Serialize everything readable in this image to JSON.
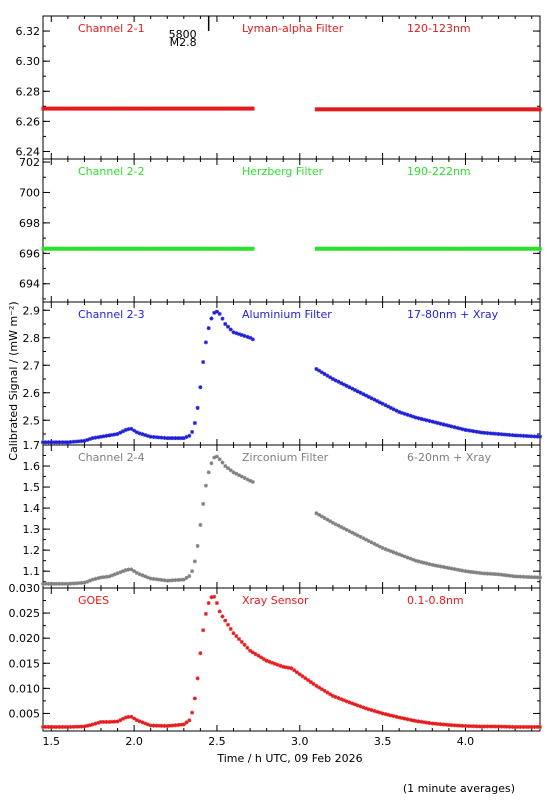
{
  "figure": {
    "xlabel": "Time / h UTC, 09 Feb 2026",
    "ylabel": "Calibrated Signal / (mW m⁻²)",
    "footnote": "(1 minute averages)",
    "flare_marker": {
      "x": 2.45,
      "line1": "5800",
      "line2": "M2.8"
    }
  },
  "chart_data": [
    {
      "type": "scatter",
      "channel": "Channel 2-1",
      "filter": "Lyman-alpha Filter",
      "band": "120-123nm",
      "color": "#e41a1c",
      "xlim": [
        1.45,
        4.45
      ],
      "ylim": [
        6.235,
        6.33
      ],
      "yticks": [
        6.24,
        6.26,
        6.28,
        6.3,
        6.32
      ],
      "ydecimals": 2,
      "gap": [
        2.73,
        3.09
      ],
      "series": [
        {
          "x": [
            1.45,
            2.0,
            2.5,
            2.73,
            3.09,
            3.6,
            4.1,
            4.45
          ],
          "y": [
            6.2685,
            6.2685,
            6.2685,
            6.2685,
            6.268,
            6.268,
            6.268,
            6.268
          ]
        }
      ]
    },
    {
      "type": "scatter",
      "channel": "Channel 2-2",
      "filter": "Herzberg Filter",
      "band": "190-222nm",
      "color": "#2ee02e",
      "xlim": [
        1.45,
        4.45
      ],
      "ylim": [
        692.8,
        702.2
      ],
      "yticks": [
        694,
        696,
        698,
        700,
        702
      ],
      "ydecimals": 0,
      "gap": [
        2.73,
        3.09
      ],
      "series": [
        {
          "x": [
            1.45,
            2.0,
            2.5,
            2.73,
            3.09,
            3.6,
            4.1,
            4.45
          ],
          "y": [
            696.3,
            696.3,
            696.3,
            696.3,
            696.3,
            696.3,
            696.3,
            696.3
          ]
        }
      ]
    },
    {
      "type": "scatter",
      "channel": "Channel 2-3",
      "filter": "Aluminium Filter",
      "band": "17-80nm + Xray",
      "color": "#1f1fd6",
      "xlim": [
        1.45,
        4.45
      ],
      "ylim": [
        2.41,
        2.93
      ],
      "yticks": [
        2.5,
        2.6,
        2.7,
        2.8,
        2.9
      ],
      "ydecimals": 1,
      "gap": [
        2.73,
        3.09
      ],
      "series": [
        {
          "x": [
            1.45,
            1.6,
            1.7,
            1.75,
            1.8,
            1.85,
            1.9,
            1.95,
            1.98,
            2.02,
            2.1,
            2.2,
            2.3,
            2.34,
            2.36,
            2.38,
            2.4,
            2.42,
            2.44,
            2.46,
            2.48,
            2.5,
            2.52,
            2.55,
            2.6,
            2.65,
            2.7,
            2.73,
            3.09,
            3.2,
            3.3,
            3.4,
            3.5,
            3.6,
            3.7,
            3.8,
            3.9,
            4.0,
            4.1,
            4.2,
            4.3,
            4.45
          ],
          "y": [
            2.42,
            2.42,
            2.425,
            2.435,
            2.44,
            2.445,
            2.45,
            2.465,
            2.47,
            2.455,
            2.44,
            2.435,
            2.435,
            2.445,
            2.47,
            2.53,
            2.62,
            2.73,
            2.81,
            2.86,
            2.89,
            2.895,
            2.885,
            2.85,
            2.82,
            2.81,
            2.8,
            2.79,
            2.69,
            2.65,
            2.62,
            2.59,
            2.56,
            2.53,
            2.51,
            2.495,
            2.48,
            2.465,
            2.455,
            2.45,
            2.445,
            2.44
          ]
        }
      ]
    },
    {
      "type": "scatter",
      "channel": "Channel 2-4",
      "filter": "Zirconium Filter",
      "band": "6-20nm + Xray",
      "color": "#7f7f7f",
      "xlim": [
        1.45,
        4.45
      ],
      "ylim": [
        1.02,
        1.7
      ],
      "yticks": [
        1.1,
        1.2,
        1.3,
        1.4,
        1.5,
        1.6,
        1.7
      ],
      "ydecimals": 1,
      "gap": [
        2.73,
        3.09
      ],
      "series": [
        {
          "x": [
            1.45,
            1.6,
            1.7,
            1.75,
            1.8,
            1.85,
            1.9,
            1.95,
            1.98,
            2.02,
            2.1,
            2.2,
            2.3,
            2.34,
            2.36,
            2.38,
            2.4,
            2.42,
            2.44,
            2.46,
            2.48,
            2.5,
            2.52,
            2.55,
            2.6,
            2.65,
            2.7,
            2.73,
            3.09,
            3.2,
            3.3,
            3.4,
            3.5,
            3.6,
            3.7,
            3.8,
            3.9,
            4.0,
            4.1,
            4.2,
            4.3,
            4.45
          ],
          "y": [
            1.04,
            1.04,
            1.045,
            1.06,
            1.07,
            1.075,
            1.09,
            1.105,
            1.11,
            1.09,
            1.065,
            1.055,
            1.06,
            1.08,
            1.12,
            1.2,
            1.32,
            1.44,
            1.54,
            1.6,
            1.64,
            1.645,
            1.63,
            1.6,
            1.57,
            1.55,
            1.53,
            1.52,
            1.38,
            1.33,
            1.29,
            1.25,
            1.21,
            1.18,
            1.15,
            1.13,
            1.115,
            1.1,
            1.09,
            1.085,
            1.075,
            1.07
          ]
        }
      ]
    },
    {
      "type": "scatter",
      "channel": "GOES",
      "filter": "Xray Sensor",
      "band": "0.1-0.8nm",
      "color": "#e41a1c",
      "xlim": [
        1.45,
        4.45
      ],
      "ylim": [
        0.0015,
        0.03
      ],
      "yticks": [
        0.005,
        0.01,
        0.015,
        0.02,
        0.025,
        0.03
      ],
      "ydecimals": 3,
      "gap": null,
      "series": [
        {
          "x": [
            1.45,
            1.6,
            1.7,
            1.75,
            1.8,
            1.85,
            1.9,
            1.95,
            1.98,
            2.02,
            2.1,
            2.2,
            2.3,
            2.34,
            2.36,
            2.38,
            2.4,
            2.42,
            2.44,
            2.46,
            2.48,
            2.5,
            2.52,
            2.55,
            2.6,
            2.7,
            2.8,
            2.9,
            2.95,
            3.0,
            3.1,
            3.2,
            3.3,
            3.4,
            3.5,
            3.6,
            3.7,
            3.8,
            3.9,
            4.0,
            4.1,
            4.2,
            4.3,
            4.45
          ],
          "y": [
            0.0023,
            0.0023,
            0.0024,
            0.0028,
            0.0033,
            0.0033,
            0.0034,
            0.0042,
            0.0044,
            0.0036,
            0.0026,
            0.0025,
            0.0028,
            0.0038,
            0.0065,
            0.011,
            0.017,
            0.0225,
            0.026,
            0.028,
            0.0285,
            0.027,
            0.025,
            0.0235,
            0.021,
            0.0175,
            0.0155,
            0.0143,
            0.014,
            0.0128,
            0.0105,
            0.0085,
            0.0072,
            0.006,
            0.005,
            0.0042,
            0.0035,
            0.003,
            0.0027,
            0.0025,
            0.0024,
            0.0024,
            0.0023,
            0.0023
          ]
        }
      ]
    }
  ],
  "xaxis": {
    "ticks": [
      1.5,
      2.0,
      2.5,
      3.0,
      3.5,
      4.0
    ]
  }
}
